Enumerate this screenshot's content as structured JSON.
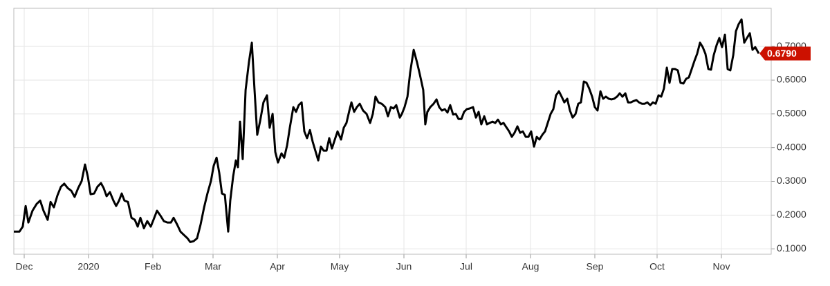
{
  "chart_data": {
    "type": "line",
    "x": [
      0,
      2.7,
      4.3,
      5.7,
      7,
      9,
      11,
      12.7,
      14.3,
      16.3,
      17.7,
      19.3,
      21,
      22.7,
      24.3,
      26,
      27.7,
      29.3,
      31,
      32.7,
      34.3,
      35.7,
      37,
      38.7,
      40.3,
      42,
      43.3,
      44.7,
      46.3,
      48,
      49.3,
      50.7,
      52,
      53.3,
      55,
      56.7,
      58.3,
      59.7,
      61,
      62.7,
      64.3,
      66,
      67.3,
      69,
      70.7,
      72.3,
      74,
      75.7,
      77,
      78.7,
      80.3,
      82,
      83.7,
      85,
      86.7,
      88.3,
      90,
      91.7,
      93.3,
      95,
      96.3,
      97.7,
      99,
      100.3,
      101.7,
      103.3,
      104.3,
      105.7,
      107,
      108,
      109,
      110.3,
      111.7,
      113.3,
      114.7,
      116,
      117.3,
      118.7,
      120.3,
      122,
      123.3,
      124.7,
      126,
      127.3,
      129,
      130.3,
      131.7,
      133,
      134.7,
      136,
      137.3,
      138.7,
      140,
      141.3,
      142.7,
      144,
      145.3,
      146.7,
      148,
      149.3,
      150.7,
      152,
      153.3,
      154.7,
      156,
      157.7,
      159,
      160.3,
      161.7,
      162.7,
      164,
      165.3,
      166.7,
      168.3,
      170,
      171.7,
      173,
      174.3,
      175.7,
      177.3,
      179,
      180.3,
      181.7,
      183,
      184.3,
      186,
      187,
      188.3,
      189.7,
      191,
      192.7,
      194.3,
      195.7,
      197.3,
      198.3,
      199.3,
      200.7,
      202.3,
      203.7,
      205,
      206.3,
      207.7,
      209,
      210.3,
      211.7,
      213,
      214.3,
      215.7,
      217,
      218.3,
      219.7,
      221.3,
      222.7,
      224,
      225.3,
      226.7,
      228,
      229.3,
      230.7,
      232,
      233.3,
      234.7,
      236,
      237.3,
      238.7,
      240,
      241.3,
      242.7,
      244,
      245.3,
      246.7,
      248,
      249.3,
      250.7,
      252,
      253.3,
      254.7,
      256,
      257.3,
      258.7,
      260,
      261.3,
      262.7,
      264,
      265.3,
      266.7,
      268,
      269.3,
      270.7,
      272,
      273.3,
      274.7,
      276,
      277.3,
      278.7,
      280,
      281.3,
      282.7,
      284,
      285.3,
      286.7,
      288,
      289.3,
      290.7,
      292,
      293.3,
      294.7,
      296,
      297.3,
      298.7,
      300,
      301.3,
      302.7,
      304,
      305.3,
      306.7,
      308,
      309.3,
      310.7,
      312,
      313.3,
      314.7,
      316,
      317.3,
      318.7,
      320,
      321.3,
      322.7,
      324,
      325.3,
      326.7,
      328,
      329.3,
      330.7,
      332,
      333.3,
      334.7,
      336,
      337.3,
      338.7,
      340,
      341.3,
      342.7,
      344,
      345.3,
      346.7,
      348,
      349.3,
      350.7,
      352,
      353.3,
      354.7,
      356,
      357.3,
      359
    ],
    "values": [
      0.151,
      0.151,
      0.166,
      0.227,
      0.178,
      0.213,
      0.233,
      0.243,
      0.213,
      0.186,
      0.239,
      0.223,
      0.258,
      0.284,
      0.293,
      0.28,
      0.272,
      0.254,
      0.28,
      0.301,
      0.35,
      0.313,
      0.262,
      0.264,
      0.284,
      0.295,
      0.28,
      0.256,
      0.268,
      0.243,
      0.227,
      0.243,
      0.264,
      0.243,
      0.239,
      0.192,
      0.186,
      0.166,
      0.192,
      0.161,
      0.182,
      0.166,
      0.186,
      0.213,
      0.198,
      0.182,
      0.178,
      0.178,
      0.192,
      0.172,
      0.151,
      0.141,
      0.131,
      0.12,
      0.123,
      0.131,
      0.172,
      0.223,
      0.264,
      0.301,
      0.346,
      0.37,
      0.325,
      0.264,
      0.26,
      0.151,
      0.243,
      0.315,
      0.362,
      0.342,
      0.477,
      0.366,
      0.571,
      0.653,
      0.711,
      0.571,
      0.438,
      0.479,
      0.534,
      0.555,
      0.459,
      0.5,
      0.387,
      0.356,
      0.383,
      0.37,
      0.407,
      0.459,
      0.52,
      0.506,
      0.526,
      0.534,
      0.448,
      0.428,
      0.452,
      0.418,
      0.391,
      0.362,
      0.403,
      0.391,
      0.391,
      0.428,
      0.397,
      0.424,
      0.448,
      0.424,
      0.459,
      0.473,
      0.51,
      0.534,
      0.506,
      0.52,
      0.53,
      0.51,
      0.5,
      0.473,
      0.5,
      0.551,
      0.534,
      0.53,
      0.52,
      0.493,
      0.52,
      0.516,
      0.526,
      0.489,
      0.5,
      0.52,
      0.551,
      0.623,
      0.69,
      0.653,
      0.616,
      0.571,
      0.469,
      0.506,
      0.52,
      0.53,
      0.543,
      0.52,
      0.51,
      0.514,
      0.504,
      0.526,
      0.498,
      0.5,
      0.485,
      0.485,
      0.506,
      0.514,
      0.516,
      0.52,
      0.489,
      0.506,
      0.469,
      0.493,
      0.469,
      0.473,
      0.477,
      0.473,
      0.483,
      0.469,
      0.473,
      0.461,
      0.448,
      0.432,
      0.444,
      0.463,
      0.444,
      0.448,
      0.432,
      0.432,
      0.448,
      0.403,
      0.432,
      0.424,
      0.438,
      0.448,
      0.473,
      0.5,
      0.514,
      0.555,
      0.567,
      0.551,
      0.534,
      0.545,
      0.51,
      0.489,
      0.5,
      0.53,
      0.534,
      0.596,
      0.592,
      0.575,
      0.551,
      0.52,
      0.51,
      0.567,
      0.545,
      0.551,
      0.545,
      0.543,
      0.545,
      0.551,
      0.561,
      0.551,
      0.561,
      0.534,
      0.534,
      0.538,
      0.541,
      0.534,
      0.53,
      0.53,
      0.534,
      0.526,
      0.534,
      0.53,
      0.555,
      0.551,
      0.575,
      0.637,
      0.592,
      0.633,
      0.633,
      0.629,
      0.592,
      0.59,
      0.604,
      0.608,
      0.633,
      0.657,
      0.678,
      0.711,
      0.698,
      0.678,
      0.633,
      0.631,
      0.674,
      0.704,
      0.725,
      0.698,
      0.735,
      0.633,
      0.629,
      0.674,
      0.745,
      0.766,
      0.78,
      0.711,
      0.725,
      0.739,
      0.69,
      0.698,
      0.679
    ],
    "color": "#000000",
    "xlim": [
      0,
      365
    ],
    "xticks": [
      {
        "value": 5,
        "label": "Dec"
      },
      {
        "value": 36,
        "label": "2020"
      },
      {
        "value": 67,
        "label": "Feb"
      },
      {
        "value": 96,
        "label": "Mar"
      },
      {
        "value": 127,
        "label": "Apr"
      },
      {
        "value": 157,
        "label": "May"
      },
      {
        "value": 188,
        "label": "Jun"
      },
      {
        "value": 218,
        "label": "Jul"
      },
      {
        "value": 249,
        "label": "Aug"
      },
      {
        "value": 280,
        "label": "Sep"
      },
      {
        "value": 310,
        "label": "Oct"
      },
      {
        "value": 341,
        "label": "Nov"
      }
    ],
    "ylim": [
      0.084,
      0.813
    ],
    "yticks": [
      {
        "value": 0.1,
        "label": "0.1000"
      },
      {
        "value": 0.2,
        "label": "0.2000"
      },
      {
        "value": 0.3,
        "label": "0.3000"
      },
      {
        "value": 0.4,
        "label": "0.4000"
      },
      {
        "value": 0.5,
        "label": "0.5000"
      },
      {
        "value": 0.6,
        "label": "0.6000"
      },
      {
        "value": 0.7,
        "label": "0.7000"
      }
    ],
    "current": {
      "value": 0.679,
      "label": "0.6790",
      "color": "#cc1100"
    },
    "grid": true
  }
}
